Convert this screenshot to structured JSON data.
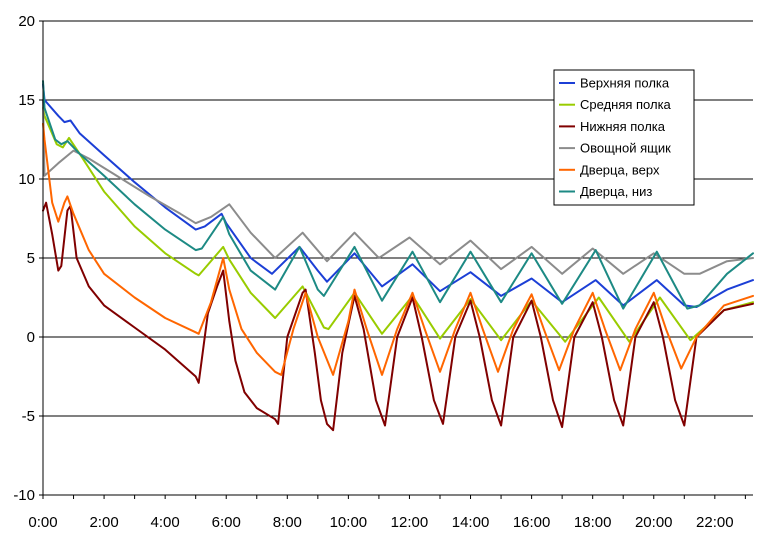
{
  "chart_data": {
    "type": "line",
    "title": "",
    "xlabel": "",
    "ylabel": "",
    "x_unit": "hours",
    "xlim": [
      0,
      23.25
    ],
    "ylim": [
      -10,
      20
    ],
    "yticks": [
      20,
      15,
      10,
      5,
      0,
      -5,
      -10
    ],
    "ytick_labels": [
      "20",
      "15",
      "10",
      "5",
      "0",
      "-5",
      "-10"
    ],
    "xtick_labels": [
      "0:00",
      "2:00",
      "4:00",
      "6:00",
      "8:00",
      "10:00",
      "12:00",
      "14:00",
      "16:00",
      "18:00",
      "20:00",
      "22:00"
    ],
    "grid": "horizontal",
    "legend_position": "top-right",
    "series": [
      {
        "name": "Верхняя полка",
        "color": "#1c3fd6",
        "points": [
          [
            0,
            16.0
          ],
          [
            0.05,
            15.0
          ],
          [
            0.5,
            14.0
          ],
          [
            0.7,
            13.6
          ],
          [
            0.9,
            13.7
          ],
          [
            1.2,
            12.9
          ],
          [
            2.0,
            11.5
          ],
          [
            3.0,
            9.8
          ],
          [
            4.0,
            8.2
          ],
          [
            5.0,
            6.8
          ],
          [
            5.3,
            7.0
          ],
          [
            5.85,
            7.8
          ],
          [
            6.0,
            7.2
          ],
          [
            6.8,
            5.0
          ],
          [
            7.5,
            4.0
          ],
          [
            8.4,
            5.7
          ],
          [
            9.0,
            4.2
          ],
          [
            9.3,
            3.5
          ],
          [
            10.2,
            5.3
          ],
          [
            11.1,
            3.2
          ],
          [
            12.1,
            4.6
          ],
          [
            13.0,
            2.9
          ],
          [
            14.0,
            4.1
          ],
          [
            15.0,
            2.6
          ],
          [
            16.0,
            3.7
          ],
          [
            17.0,
            2.2
          ],
          [
            18.1,
            3.6
          ],
          [
            19.0,
            2.0
          ],
          [
            20.1,
            3.6
          ],
          [
            21.0,
            2.0
          ],
          [
            21.4,
            1.9
          ],
          [
            22.4,
            3.0
          ],
          [
            23.25,
            3.6
          ]
        ]
      },
      {
        "name": "Средняя полка",
        "color": "#99cc00",
        "points": [
          [
            0,
            14.5
          ],
          [
            0.05,
            14.0
          ],
          [
            0.45,
            12.2
          ],
          [
            0.65,
            12.0
          ],
          [
            0.85,
            12.6
          ],
          [
            1.2,
            11.6
          ],
          [
            2.0,
            9.2
          ],
          [
            3.0,
            7.0
          ],
          [
            4.0,
            5.3
          ],
          [
            5.0,
            4.0
          ],
          [
            5.1,
            3.9
          ],
          [
            5.9,
            5.7
          ],
          [
            6.1,
            4.9
          ],
          [
            6.8,
            2.8
          ],
          [
            7.6,
            1.2
          ],
          [
            8.5,
            3.2
          ],
          [
            9.2,
            0.6
          ],
          [
            9.35,
            0.5
          ],
          [
            10.2,
            2.8
          ],
          [
            11.1,
            0.2
          ],
          [
            12.1,
            2.6
          ],
          [
            13.0,
            -0.1
          ],
          [
            14.0,
            2.4
          ],
          [
            15.0,
            -0.2
          ],
          [
            16.0,
            2.3
          ],
          [
            17.1,
            -0.3
          ],
          [
            18.2,
            2.5
          ],
          [
            19.2,
            -0.3
          ],
          [
            20.2,
            2.5
          ],
          [
            21.2,
            -0.2
          ],
          [
            22.3,
            1.7
          ],
          [
            23.25,
            2.2
          ]
        ]
      },
      {
        "name": "Нижняя полка",
        "color": "#800000",
        "points": [
          [
            0,
            8.0
          ],
          [
            0.1,
            8.5
          ],
          [
            0.3,
            6.5
          ],
          [
            0.5,
            4.2
          ],
          [
            0.6,
            4.5
          ],
          [
            0.8,
            8.0
          ],
          [
            0.9,
            8.3
          ],
          [
            1.1,
            5.0
          ],
          [
            1.5,
            3.2
          ],
          [
            2.0,
            2.0
          ],
          [
            3.0,
            0.6
          ],
          [
            4.0,
            -0.8
          ],
          [
            5.0,
            -2.5
          ],
          [
            5.1,
            -2.9
          ],
          [
            5.4,
            1.5
          ],
          [
            5.7,
            3.2
          ],
          [
            5.9,
            4.2
          ],
          [
            6.1,
            1.0
          ],
          [
            6.3,
            -1.5
          ],
          [
            6.6,
            -3.5
          ],
          [
            7.0,
            -4.5
          ],
          [
            7.6,
            -5.2
          ],
          [
            7.7,
            -5.5
          ],
          [
            8.0,
            0.0
          ],
          [
            8.5,
            2.8
          ],
          [
            8.6,
            3.0
          ],
          [
            8.9,
            -1.0
          ],
          [
            9.1,
            -4.0
          ],
          [
            9.3,
            -5.5
          ],
          [
            9.5,
            -5.9
          ],
          [
            9.8,
            -1.0
          ],
          [
            10.2,
            2.6
          ],
          [
            10.5,
            0.5
          ],
          [
            10.9,
            -4.0
          ],
          [
            11.2,
            -5.6
          ],
          [
            11.6,
            0.0
          ],
          [
            12.1,
            2.5
          ],
          [
            12.4,
            0.0
          ],
          [
            12.8,
            -4.0
          ],
          [
            13.1,
            -5.5
          ],
          [
            13.5,
            0.0
          ],
          [
            14.0,
            2.3
          ],
          [
            14.3,
            0.0
          ],
          [
            14.7,
            -4.0
          ],
          [
            15.0,
            -5.6
          ],
          [
            15.4,
            0.0
          ],
          [
            16.0,
            2.3
          ],
          [
            16.3,
            0.0
          ],
          [
            16.7,
            -4.0
          ],
          [
            17.0,
            -5.7
          ],
          [
            17.4,
            0.0
          ],
          [
            18.0,
            2.2
          ],
          [
            18.3,
            0.0
          ],
          [
            18.7,
            -4.0
          ],
          [
            19.0,
            -5.6
          ],
          [
            19.4,
            0.0
          ],
          [
            20.0,
            2.2
          ],
          [
            20.3,
            0.0
          ],
          [
            20.7,
            -4.0
          ],
          [
            21.0,
            -5.6
          ],
          [
            21.4,
            0.0
          ],
          [
            22.3,
            1.7
          ],
          [
            23.25,
            2.1
          ]
        ]
      },
      {
        "name": "Овощной ящик",
        "color": "#8c8c8c",
        "points": [
          [
            0,
            15.0
          ],
          [
            0.05,
            10.2
          ],
          [
            0.5,
            11.0
          ],
          [
            1.0,
            11.8
          ],
          [
            1.5,
            11.3
          ],
          [
            2.5,
            10.1
          ],
          [
            3.5,
            8.9
          ],
          [
            4.5,
            7.8
          ],
          [
            5.0,
            7.2
          ],
          [
            5.5,
            7.6
          ],
          [
            6.1,
            8.4
          ],
          [
            6.8,
            6.6
          ],
          [
            7.6,
            5.0
          ],
          [
            8.5,
            6.6
          ],
          [
            9.3,
            4.8
          ],
          [
            10.2,
            6.6
          ],
          [
            11.0,
            5.0
          ],
          [
            12.0,
            6.3
          ],
          [
            13.0,
            4.6
          ],
          [
            14.0,
            6.1
          ],
          [
            15.0,
            4.3
          ],
          [
            16.0,
            5.7
          ],
          [
            17.0,
            4.0
          ],
          [
            18.0,
            5.6
          ],
          [
            19.0,
            4.0
          ],
          [
            20.0,
            5.3
          ],
          [
            21.0,
            4.0
          ],
          [
            21.5,
            4.0
          ],
          [
            22.4,
            4.8
          ],
          [
            23.25,
            5.0
          ]
        ]
      },
      {
        "name": "Дверца, верх",
        "color": "#ff6600",
        "points": [
          [
            0,
            13.5
          ],
          [
            0.05,
            12.5
          ],
          [
            0.3,
            8.5
          ],
          [
            0.5,
            7.3
          ],
          [
            0.7,
            8.5
          ],
          [
            0.8,
            8.9
          ],
          [
            1.0,
            7.8
          ],
          [
            1.5,
            5.5
          ],
          [
            2.0,
            4.0
          ],
          [
            3.0,
            2.5
          ],
          [
            4.0,
            1.2
          ],
          [
            5.0,
            0.3
          ],
          [
            5.1,
            0.2
          ],
          [
            5.5,
            2.2
          ],
          [
            5.9,
            5.0
          ],
          [
            6.1,
            3.0
          ],
          [
            6.5,
            0.5
          ],
          [
            7.0,
            -1.0
          ],
          [
            7.6,
            -2.2
          ],
          [
            7.8,
            -2.4
          ],
          [
            8.2,
            0.5
          ],
          [
            8.6,
            2.8
          ],
          [
            9.0,
            0.0
          ],
          [
            9.5,
            -2.4
          ],
          [
            10.0,
            1.0
          ],
          [
            10.2,
            3.0
          ],
          [
            10.6,
            0.5
          ],
          [
            11.1,
            -2.4
          ],
          [
            11.6,
            0.5
          ],
          [
            12.1,
            2.8
          ],
          [
            12.5,
            0.5
          ],
          [
            13.0,
            -2.2
          ],
          [
            13.5,
            0.5
          ],
          [
            14.0,
            2.8
          ],
          [
            14.4,
            0.5
          ],
          [
            14.9,
            -2.2
          ],
          [
            15.4,
            0.5
          ],
          [
            16.0,
            2.7
          ],
          [
            16.4,
            0.5
          ],
          [
            16.9,
            -2.1
          ],
          [
            17.4,
            0.5
          ],
          [
            18.0,
            2.8
          ],
          [
            18.4,
            0.5
          ],
          [
            18.9,
            -2.1
          ],
          [
            19.4,
            0.5
          ],
          [
            20.0,
            2.8
          ],
          [
            20.4,
            0.5
          ],
          [
            20.9,
            -2.0
          ],
          [
            21.4,
            0.0
          ],
          [
            22.3,
            2.0
          ],
          [
            23.25,
            2.6
          ]
        ]
      },
      {
        "name": "Дверца, низ",
        "color": "#1d8a84",
        "points": [
          [
            0,
            16.2
          ],
          [
            0.05,
            14.5
          ],
          [
            0.4,
            12.5
          ],
          [
            0.6,
            12.2
          ],
          [
            0.8,
            12.4
          ],
          [
            1.2,
            11.6
          ],
          [
            2.0,
            10.2
          ],
          [
            3.0,
            8.4
          ],
          [
            4.0,
            6.8
          ],
          [
            5.0,
            5.5
          ],
          [
            5.2,
            5.6
          ],
          [
            5.9,
            7.6
          ],
          [
            6.1,
            6.5
          ],
          [
            6.8,
            4.2
          ],
          [
            7.6,
            3.0
          ],
          [
            8.4,
            5.7
          ],
          [
            9.0,
            3.0
          ],
          [
            9.2,
            2.6
          ],
          [
            10.2,
            5.7
          ],
          [
            11.1,
            2.3
          ],
          [
            12.1,
            5.4
          ],
          [
            13.0,
            2.2
          ],
          [
            14.0,
            5.4
          ],
          [
            15.0,
            2.2
          ],
          [
            16.0,
            5.3
          ],
          [
            17.0,
            2.1
          ],
          [
            18.1,
            5.5
          ],
          [
            19.0,
            1.8
          ],
          [
            20.1,
            5.4
          ],
          [
            21.1,
            1.8
          ],
          [
            21.5,
            2.0
          ],
          [
            22.4,
            4.0
          ],
          [
            23.25,
            5.3
          ]
        ]
      }
    ]
  }
}
